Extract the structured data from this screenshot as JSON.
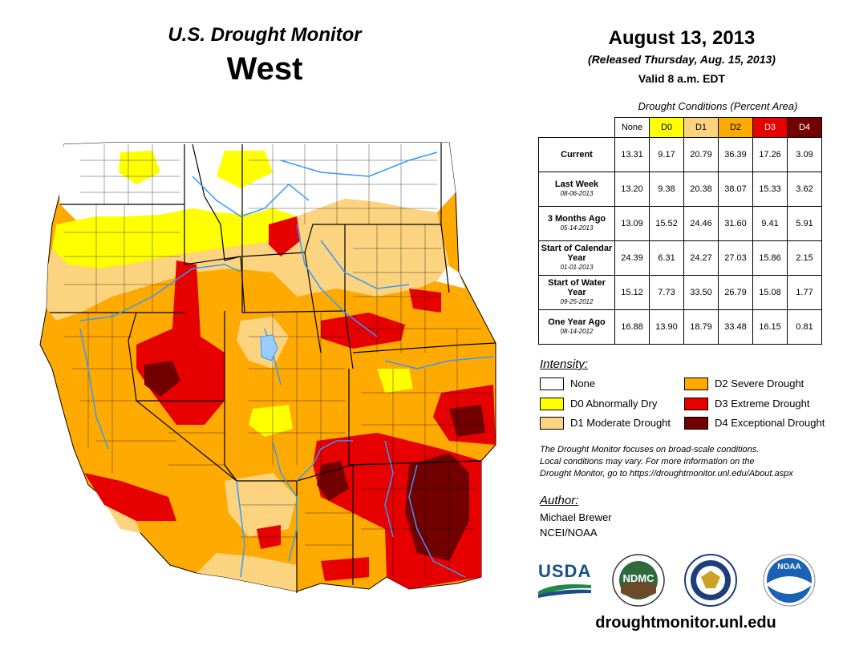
{
  "header": {
    "title": "U.S. Drought Monitor",
    "region": "West",
    "date": "August 13, 2013",
    "released": "(Released Thursday, Aug. 15, 2013)",
    "valid": "Valid 8 a.m. EDT"
  },
  "table": {
    "caption": "Drought Conditions (Percent Area)",
    "columns": [
      "None",
      "D0",
      "D1",
      "D2",
      "D3",
      "D4"
    ],
    "rows": [
      {
        "label": "Current",
        "date": "",
        "values": [
          "13.31",
          "9.17",
          "20.79",
          "36.39",
          "17.26",
          "3.09"
        ]
      },
      {
        "label": "Last Week",
        "date": "08-06-2013",
        "values": [
          "13.20",
          "9.38",
          "20.38",
          "38.07",
          "15.33",
          "3.62"
        ]
      },
      {
        "label": "3 Months Ago",
        "date": "05-14-2013",
        "values": [
          "13.09",
          "15.52",
          "24.46",
          "31.60",
          "9.41",
          "5.91"
        ]
      },
      {
        "label": "Start of Calendar Year",
        "date": "01-01-2013",
        "values": [
          "24.39",
          "6.31",
          "24.27",
          "27.03",
          "15.86",
          "2.15"
        ]
      },
      {
        "label": "Start of Water Year",
        "date": "09-25-2012",
        "values": [
          "15.12",
          "7.73",
          "33.50",
          "26.79",
          "15.08",
          "1.77"
        ]
      },
      {
        "label": "One Year Ago",
        "date": "08-14-2012",
        "values": [
          "16.88",
          "13.90",
          "18.79",
          "33.48",
          "16.15",
          "0.81"
        ]
      }
    ]
  },
  "legend": {
    "title": "Intensity:",
    "items": [
      {
        "label": "None",
        "color": "#ffffff"
      },
      {
        "label": "D0 Abnormally Dry",
        "color": "#ffff00"
      },
      {
        "label": "D1 Moderate Drought",
        "color": "#fcd37f"
      },
      {
        "label": "D2 Severe Drought",
        "color": "#ffaa00"
      },
      {
        "label": "D3 Extreme Drought",
        "color": "#e60000"
      },
      {
        "label": "D4 Exceptional Drought",
        "color": "#730000"
      }
    ]
  },
  "note": {
    "line1": "The Drought Monitor focuses on broad-scale conditions.",
    "line2": "Local conditions may vary. For more information on the",
    "line3": "Drought Monitor, go to https://droughtmonitor.unl.edu/About.aspx"
  },
  "author": {
    "title": "Author:",
    "name": "Michael Brewer",
    "org": "NCEI/NOAA"
  },
  "logos": {
    "usda": "USDA",
    "ndmc": "NDMC",
    "noaa": "NOAA"
  },
  "url": "droughtmonitor.unl.edu",
  "colors": {
    "none": "#ffffff",
    "d0": "#ffff00",
    "d1": "#fcd37f",
    "d2": "#ffaa00",
    "d3": "#e60000",
    "d4": "#730000",
    "rivers": "#3399ff",
    "borders": "#000000"
  }
}
